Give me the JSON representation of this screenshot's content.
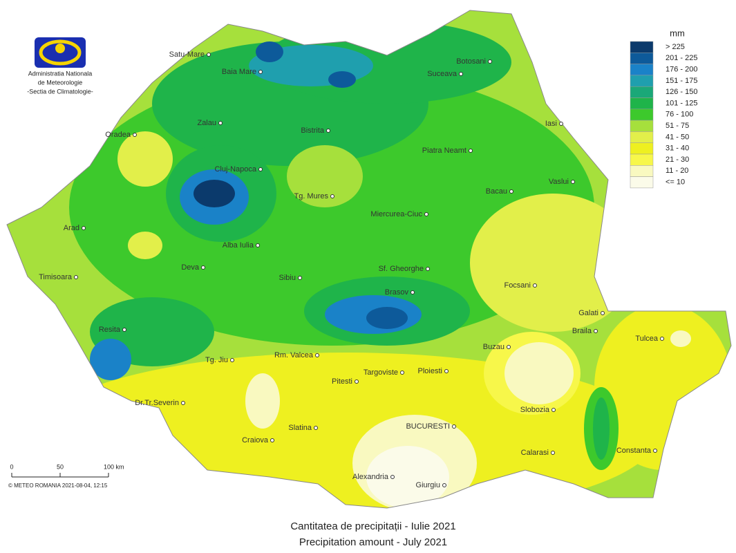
{
  "logo": {
    "lines": [
      "Administratia Nationala",
      "de Meteorologie",
      "-Sectia de Climatologie-"
    ]
  },
  "cities": [
    "Satu-Mare",
    "Baia Mare",
    "Botosani",
    "Suceava",
    "Zalau",
    "Bistrita",
    "Iasi",
    "Oradea",
    "Piatra Neamt",
    "Cluj-Napoca",
    "Bacau",
    "Vaslui",
    "Tg. Mures",
    "Arad",
    "Miercurea-Ciuc",
    "Alba Iulia",
    "Deva",
    "Sf. Gheorghe",
    "Timisoara",
    "Sibiu",
    "Focsani",
    "Brasov",
    "Galati",
    "Resita",
    "Braila",
    "Tulcea",
    "Buzau",
    "Tg. Jiu",
    "Rm. Valcea",
    "Targoviste",
    "Ploiesti",
    "Pitesti",
    "Dr.Tr.Severin",
    "Slobozia",
    "Slatina",
    "BUCURESTI",
    "Craiova",
    "Calarasi",
    "Constanta",
    "Alexandria",
    "Giurgiu"
  ],
  "legend": {
    "unit": "mm",
    "classes": [
      {
        "label": "> 225",
        "color": "#0b3a6c"
      },
      {
        "label": "201 - 225",
        "color": "#0d5a9a"
      },
      {
        "label": "176 - 200",
        "color": "#1a82c8"
      },
      {
        "label": "151 - 175",
        "color": "#1f9fae"
      },
      {
        "label": "126 - 150",
        "color": "#1aa878"
      },
      {
        "label": "101 - 125",
        "color": "#1fb44a"
      },
      {
        "label": "76 - 100",
        "color": "#3dc92c"
      },
      {
        "label": "51 - 75",
        "color": "#a6e03c"
      },
      {
        "label": "41 - 50",
        "color": "#e2ef4a"
      },
      {
        "label": "31 - 40",
        "color": "#eef020"
      },
      {
        "label": "21 - 30",
        "color": "#f7f74a"
      },
      {
        "label": "11 - 20",
        "color": "#f9f9c0"
      },
      {
        "label": "<= 10",
        "color": "#fbfbe9"
      }
    ]
  },
  "scale": {
    "labels": [
      "0",
      "50",
      "100 km"
    ],
    "copyright": "© METEO ROMANIA 2021-08-04, 12:15"
  },
  "title": {
    "ro": "Cantitatea de precipitații - Iulie 2021",
    "en": "Precipitation amount -  July 2021"
  }
}
